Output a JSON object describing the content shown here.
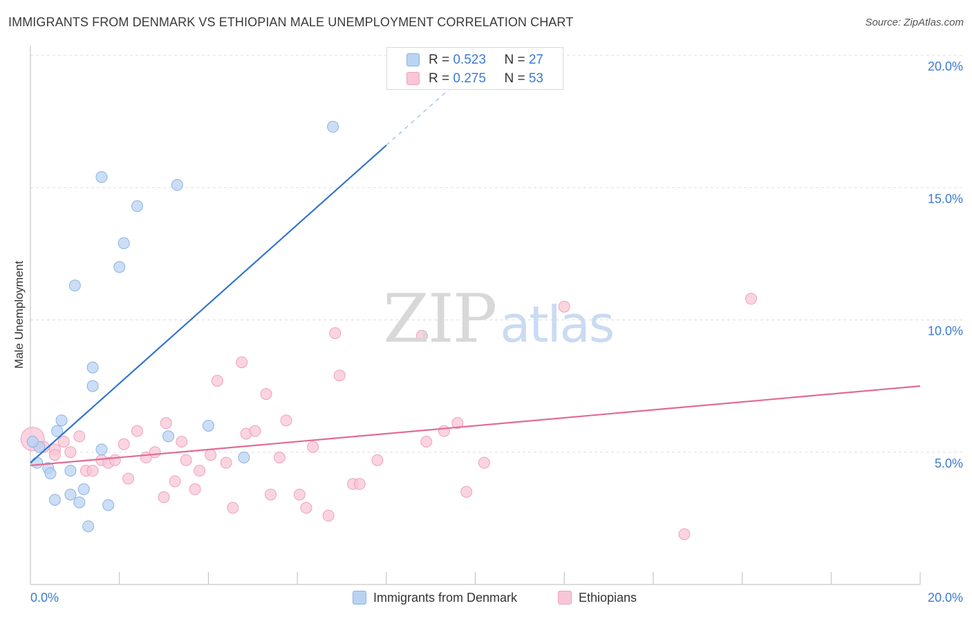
{
  "title": "IMMIGRANTS FROM DENMARK VS ETHIOPIAN MALE UNEMPLOYMENT CORRELATION CHART",
  "source": "Source: ZipAtlas.com",
  "watermark": {
    "zip": "ZIP",
    "atlas": "atlas"
  },
  "legend": {
    "r_label": "R = ",
    "n_label": "N = ",
    "blue": {
      "r": "0.523",
      "n": "27"
    },
    "pink": {
      "r": "0.275",
      "n": "53"
    }
  },
  "colors": {
    "blue_fill": "#b9d3f2",
    "blue_stroke": "#8ab2e6",
    "blue_line": "#2f74d0",
    "pink_fill": "#f8c6d6",
    "pink_stroke": "#eea2bb",
    "pink_line": "#e36a96",
    "tick_label": "#3a7bd5",
    "grid": "#dddddd"
  },
  "chart_data": {
    "type": "scatter",
    "title": "IMMIGRANTS FROM DENMARK VS ETHIOPIAN MALE UNEMPLOYMENT CORRELATION CHART",
    "xlabel": "",
    "ylabel": "Male Unemployment",
    "xlim": [
      0,
      20
    ],
    "ylim": [
      0,
      20
    ],
    "x_tick_labels": [
      "0.0%",
      "20.0%"
    ],
    "y_ticks": [
      5,
      10,
      15,
      20
    ],
    "y_tick_labels": [
      "5.0%",
      "10.0%",
      "15.0%",
      "20.0%"
    ],
    "series": [
      {
        "name": "Immigrants from Denmark",
        "color": "blue",
        "r": 0.523,
        "n": 27,
        "trend": {
          "x0": 0,
          "y0": 4.6,
          "x1": 8.0,
          "y1": 16.6,
          "dash_to_x": 9.5
        },
        "points": [
          [
            6.8,
            17.3
          ],
          [
            1.6,
            15.4
          ],
          [
            3.3,
            15.1
          ],
          [
            2.4,
            14.3
          ],
          [
            2.1,
            12.9
          ],
          [
            2.0,
            12.0
          ],
          [
            1.0,
            11.3
          ],
          [
            1.4,
            8.2
          ],
          [
            1.4,
            7.5
          ],
          [
            0.7,
            6.2
          ],
          [
            4.0,
            6.0
          ],
          [
            0.6,
            5.8
          ],
          [
            3.1,
            5.6
          ],
          [
            1.6,
            5.1
          ],
          [
            0.2,
            5.2
          ],
          [
            4.8,
            4.8
          ],
          [
            0.15,
            4.6
          ],
          [
            0.4,
            4.4
          ],
          [
            0.9,
            4.3
          ],
          [
            0.45,
            4.2
          ],
          [
            1.2,
            3.6
          ],
          [
            0.9,
            3.4
          ],
          [
            0.55,
            3.2
          ],
          [
            1.1,
            3.1
          ],
          [
            1.75,
            3.0
          ],
          [
            1.3,
            2.2
          ],
          [
            0.05,
            5.4
          ]
        ]
      },
      {
        "name": "Ethiopians",
        "color": "pink",
        "r": 0.275,
        "n": 53,
        "trend": {
          "x0": 0,
          "y0": 4.5,
          "x1": 20,
          "y1": 7.5
        },
        "points": [
          [
            0.05,
            5.5
          ],
          [
            0.3,
            5.2
          ],
          [
            0.55,
            5.1
          ],
          [
            0.75,
            5.4
          ],
          [
            0.9,
            5.0
          ],
          [
            0.55,
            4.9
          ],
          [
            1.1,
            5.6
          ],
          [
            1.25,
            4.3
          ],
          [
            1.4,
            4.3
          ],
          [
            1.6,
            4.7
          ],
          [
            1.75,
            4.6
          ],
          [
            1.9,
            4.7
          ],
          [
            2.1,
            5.3
          ],
          [
            2.2,
            4.0
          ],
          [
            2.4,
            5.8
          ],
          [
            2.6,
            4.8
          ],
          [
            2.8,
            5.0
          ],
          [
            3.0,
            3.3
          ],
          [
            3.05,
            6.1
          ],
          [
            3.25,
            3.9
          ],
          [
            3.4,
            5.4
          ],
          [
            3.5,
            4.7
          ],
          [
            3.7,
            3.6
          ],
          [
            3.8,
            4.3
          ],
          [
            4.05,
            4.9
          ],
          [
            4.2,
            7.7
          ],
          [
            4.4,
            4.6
          ],
          [
            4.55,
            2.9
          ],
          [
            4.75,
            8.4
          ],
          [
            4.85,
            5.7
          ],
          [
            5.05,
            5.8
          ],
          [
            5.3,
            7.2
          ],
          [
            5.4,
            3.4
          ],
          [
            5.6,
            4.8
          ],
          [
            5.75,
            6.2
          ],
          [
            6.05,
            3.4
          ],
          [
            6.2,
            2.9
          ],
          [
            6.35,
            5.2
          ],
          [
            6.7,
            2.6
          ],
          [
            6.85,
            9.5
          ],
          [
            6.95,
            7.9
          ],
          [
            7.25,
            3.8
          ],
          [
            7.4,
            3.8
          ],
          [
            7.8,
            4.7
          ],
          [
            8.8,
            9.4
          ],
          [
            8.9,
            5.4
          ],
          [
            9.3,
            5.8
          ],
          [
            9.6,
            6.1
          ],
          [
            9.8,
            3.5
          ],
          [
            10.2,
            4.6
          ],
          [
            12.0,
            10.5
          ],
          [
            14.7,
            1.9
          ],
          [
            16.2,
            10.8
          ]
        ]
      }
    ]
  }
}
